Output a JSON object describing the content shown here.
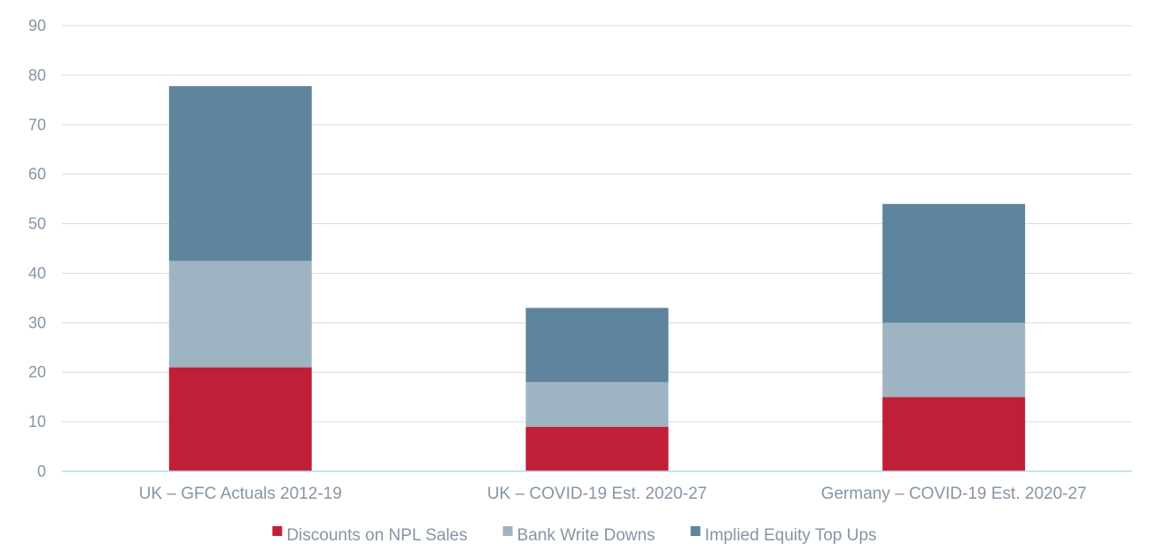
{
  "chart_data": {
    "type": "bar",
    "stacked": true,
    "categories": [
      "UK – GFC Actuals 2012-19",
      "UK – COVID-19 Est. 2020-27",
      "Germany – COVID-19 Est. 2020-27"
    ],
    "series": [
      {
        "name": "Discounts on NPL Sales",
        "color": "#c01f37",
        "values": [
          21,
          9,
          15
        ]
      },
      {
        "name": "Bank Write Downs",
        "color": "#9fb4c3",
        "values": [
          21.5,
          9,
          15
        ]
      },
      {
        "name": "Implied Equity Top Ups",
        "color": "#5e859d",
        "values": [
          35.3,
          15,
          24
        ]
      }
    ],
    "ylim": [
      0,
      90
    ],
    "yticks": [
      0,
      10,
      20,
      30,
      40,
      50,
      60,
      70,
      80,
      90
    ],
    "grid": true,
    "legend_position": "bottom"
  }
}
